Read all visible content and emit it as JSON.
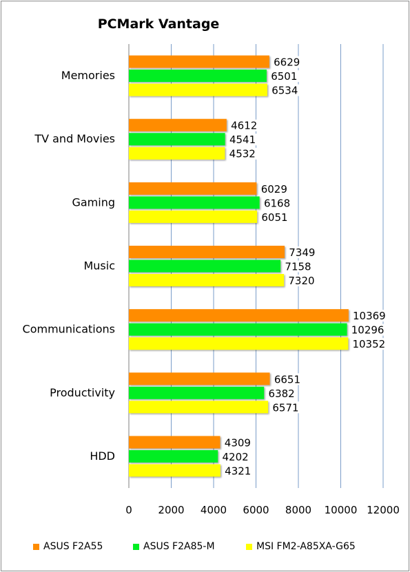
{
  "chart_data": {
    "type": "bar",
    "orientation": "horizontal",
    "title": "PCMark Vantage",
    "categories": [
      "Memories",
      "TV and Movies",
      "Gaming",
      "Music",
      "Communications",
      "Productivity",
      "HDD"
    ],
    "series": [
      {
        "name": "ASUS F2A55",
        "color": "#ff8c00",
        "values": [
          6629,
          4612,
          6029,
          7349,
          10369,
          6651,
          4309
        ]
      },
      {
        "name": "ASUS F2A85-M",
        "color": "#00ee22",
        "values": [
          6501,
          4541,
          6168,
          7158,
          10296,
          6382,
          4202
        ]
      },
      {
        "name": "MSI FM2-A85XA-G65",
        "color": "#ffff00",
        "values": [
          6534,
          4532,
          6051,
          7320,
          10352,
          6571,
          4321
        ]
      }
    ],
    "xlim": [
      0,
      12000
    ],
    "x_ticks": [
      "0",
      "2000",
      "4000",
      "6000",
      "8000",
      "10000",
      "12000"
    ],
    "xlabel": "",
    "ylabel": "",
    "grid": "vertical gridlines",
    "legend_position": "bottom",
    "data_labels": true
  }
}
